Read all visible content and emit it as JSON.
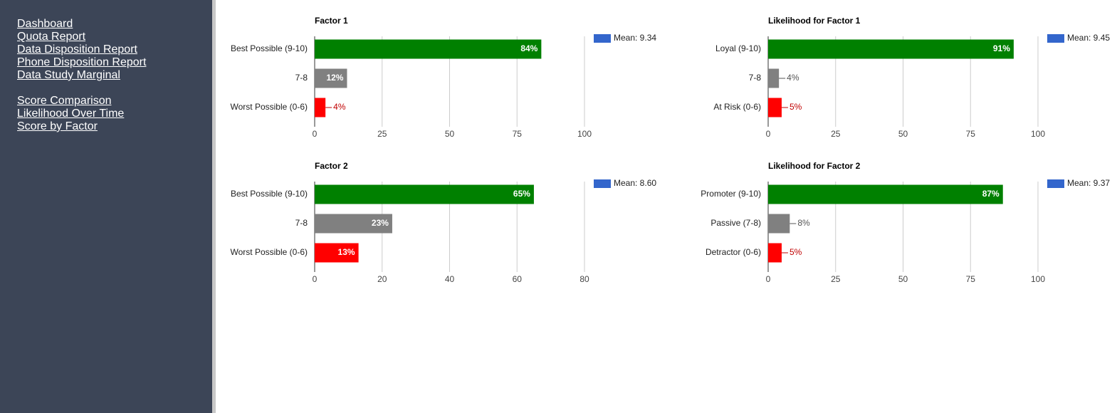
{
  "nav": {
    "group1": [
      "Dashboard",
      "Quota Report",
      "Data Disposition Report",
      "Phone Disposition Report",
      "Data Study Marginal"
    ],
    "group2": [
      "Score Comparison",
      "Likelihood Over Time",
      "Score by Factor"
    ]
  },
  "colors": {
    "green": "#008000",
    "gray": "#808080",
    "red": "#ff0000",
    "mean": "#3366cc"
  },
  "chart_data": [
    {
      "type": "bar",
      "orientation": "horizontal",
      "title": "Factor 1",
      "categories": [
        "Best Possible (9-10)",
        "7-8",
        "Worst Possible (0-6)"
      ],
      "values": [
        84,
        12,
        4
      ],
      "labels": [
        "84%",
        "12%",
        "4%"
      ],
      "colors": [
        "#008000",
        "#808080",
        "#ff0000"
      ],
      "xlim": [
        0,
        100
      ],
      "ticks": [
        0,
        25,
        50,
        75,
        100
      ],
      "legend": "Mean: 9.34",
      "grid": true
    },
    {
      "type": "bar",
      "orientation": "horizontal",
      "title": "Likelihood for Factor 1",
      "categories": [
        "Loyal (9-10)",
        "7-8",
        "At Risk (0-6)"
      ],
      "values": [
        91,
        4,
        5
      ],
      "labels": [
        "91%",
        "4%",
        "5%"
      ],
      "colors": [
        "#008000",
        "#808080",
        "#ff0000"
      ],
      "xlim": [
        0,
        100
      ],
      "ticks": [
        0,
        25,
        50,
        75,
        100
      ],
      "legend": "Mean: 9.45",
      "grid": true
    },
    {
      "type": "bar",
      "orientation": "horizontal",
      "title": "Factor 2",
      "categories": [
        "Best Possible (9-10)",
        "7-8",
        "Worst Possible (0-6)"
      ],
      "values": [
        65,
        23,
        13
      ],
      "labels": [
        "65%",
        "23%",
        "13%"
      ],
      "colors": [
        "#008000",
        "#808080",
        "#ff0000"
      ],
      "xlim": [
        0,
        80
      ],
      "ticks": [
        0,
        20,
        40,
        60,
        80
      ],
      "legend": "Mean: 8.60",
      "grid": true
    },
    {
      "type": "bar",
      "orientation": "horizontal",
      "title": "Likelihood for Factor 2",
      "categories": [
        "Promoter (9-10)",
        "Passive (7-8)",
        "Detractor (0-6)"
      ],
      "values": [
        87,
        8,
        5
      ],
      "labels": [
        "87%",
        "8%",
        "5%"
      ],
      "colors": [
        "#008000",
        "#808080",
        "#ff0000"
      ],
      "xlim": [
        0,
        100
      ],
      "ticks": [
        0,
        25,
        50,
        75,
        100
      ],
      "legend": "Mean: 9.37",
      "grid": true
    }
  ]
}
